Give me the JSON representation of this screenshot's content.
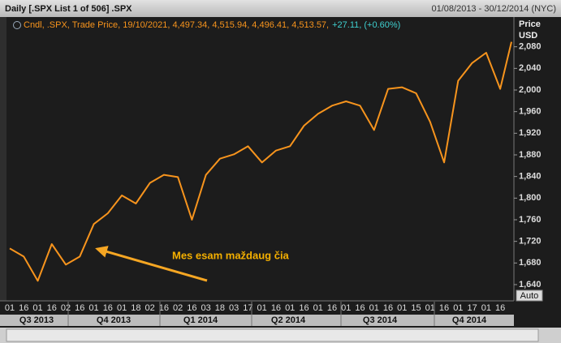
{
  "chart_data": {
    "type": "line",
    "title": "Daily [.SPX List 1 of 506] .SPX",
    "date_range": "01/08/2013 - 30/12/2014 (NYC)",
    "legend_text": "Cndl, .SPX, Trade Price, 19/10/2021, 4,497.34, 4,515.94, 4,496.41, 4,513.57,",
    "legend_change": "+27.11, (+0.60%)",
    "y_axis_label": "Price",
    "y_axis_unit": "USD",
    "auto_button": "Auto",
    "annotation": "Mes esam maždaug čia",
    "color": "#f7941d",
    "grid": false,
    "categories": [
      "01",
      "16",
      "01",
      "16",
      "02",
      "16",
      "01",
      "16",
      "01",
      "18",
      "02",
      "16",
      "02",
      "16",
      "03",
      "18",
      "03",
      "17",
      "01",
      "16",
      "01",
      "16",
      "01",
      "16",
      "01",
      "16",
      "01",
      "16",
      "01",
      "15",
      "01",
      "16",
      "01",
      "17",
      "01",
      "16",
      null
    ],
    "values": [
      1707,
      1692,
      1647,
      1715,
      1677,
      1692,
      1752,
      1772,
      1805,
      1790,
      1828,
      1843,
      1839,
      1760,
      1843,
      1873,
      1881,
      1896,
      1866,
      1888,
      1896,
      1934,
      1956,
      1971,
      1979,
      1971,
      1926,
      2002,
      2005,
      1994,
      1941,
      1866,
      2017,
      2050,
      2069,
      2002,
      2089
    ],
    "quarters": [
      "Q3 2013",
      "Q4 2013",
      "Q1 2014",
      "Q2 2014",
      "Q3 2014",
      "Q4 2014"
    ],
    "ylim": [
      1610,
      2135
    ],
    "yticks": [
      {
        "value": 1640,
        "label": "1,640"
      },
      {
        "value": 1680,
        "label": "1,680"
      },
      {
        "value": 1720,
        "label": "1,720"
      },
      {
        "value": 1760,
        "label": "1,760"
      },
      {
        "value": 1800,
        "label": "1,800"
      },
      {
        "value": 1840,
        "label": "1,840"
      },
      {
        "value": 1880,
        "label": "1,880"
      },
      {
        "value": 1920,
        "label": "1,920"
      },
      {
        "value": 1960,
        "label": "1,960"
      },
      {
        "value": 2000,
        "label": "2,000"
      },
      {
        "value": 2040,
        "label": "2,040"
      },
      {
        "value": 2080,
        "label": "2,080"
      }
    ]
  }
}
